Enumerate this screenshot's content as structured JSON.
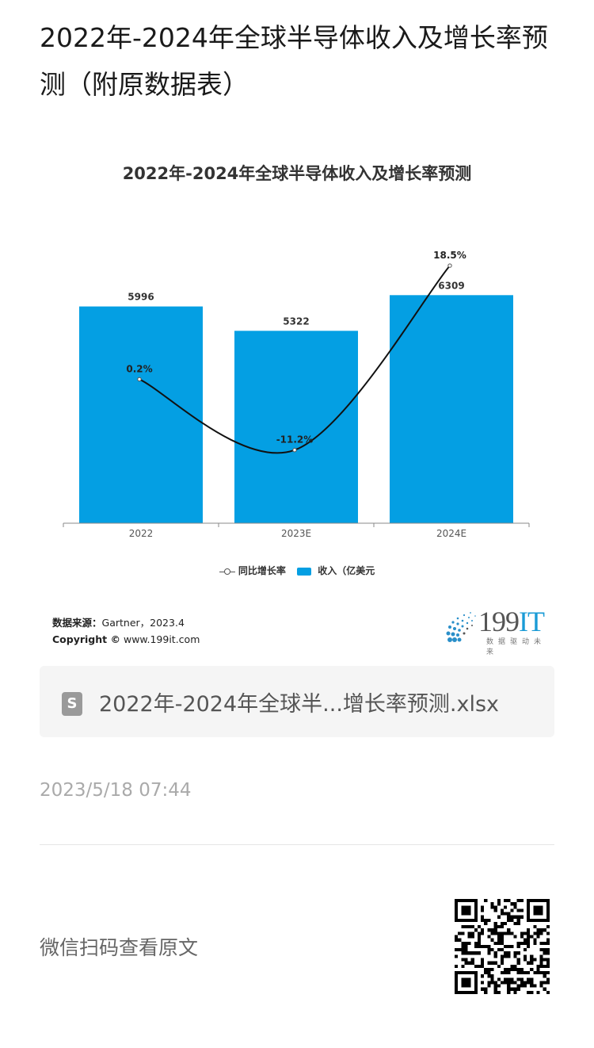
{
  "page": {
    "title": "2022年-2024年全球半导体收入及增长率预测（附原数据表）"
  },
  "chart_data": {
    "type": "bar",
    "title": "2022年-2024年全球半导体收入及增长率预测",
    "categories": [
      "2022",
      "2023E",
      "2024E"
    ],
    "series": [
      {
        "name": "收入（亿美元",
        "type": "bar",
        "values": [
          5996,
          5322,
          6309
        ],
        "labels": [
          "5996",
          "5322",
          "6309"
        ],
        "color": "#049fe3"
      },
      {
        "name": "同比增长率",
        "type": "line",
        "values": [
          0.2,
          -11.2,
          18.5
        ],
        "labels": [
          "0.2%",
          "-11.2%",
          "18.5%"
        ],
        "color": "#111111"
      }
    ],
    "ylim": [
      0,
      7000
    ],
    "line_ylim": [
      -30,
      30
    ],
    "grid": false,
    "legend_position": "bottom"
  },
  "legend": {
    "line_label": "同比增长率",
    "bar_label": "收入（亿美元"
  },
  "source": {
    "label": "数据来源：",
    "text": "Gartner，2023.4",
    "copyright_label": "Copyright ©",
    "copyright_text": "www.199it.com"
  },
  "logo": {
    "number": "199",
    "it": "IT",
    "tagline": "数据驱动未来"
  },
  "file": {
    "icon_letter": "S",
    "name": "2022年-2024年全球半...增长率预测.xlsx"
  },
  "timestamp": "2023/5/18 07:44",
  "qr": {
    "label": "微信扫码查看原文"
  },
  "colors": {
    "bar": "#049fe3",
    "line": "#111111",
    "accent": "#1a9bd6"
  }
}
